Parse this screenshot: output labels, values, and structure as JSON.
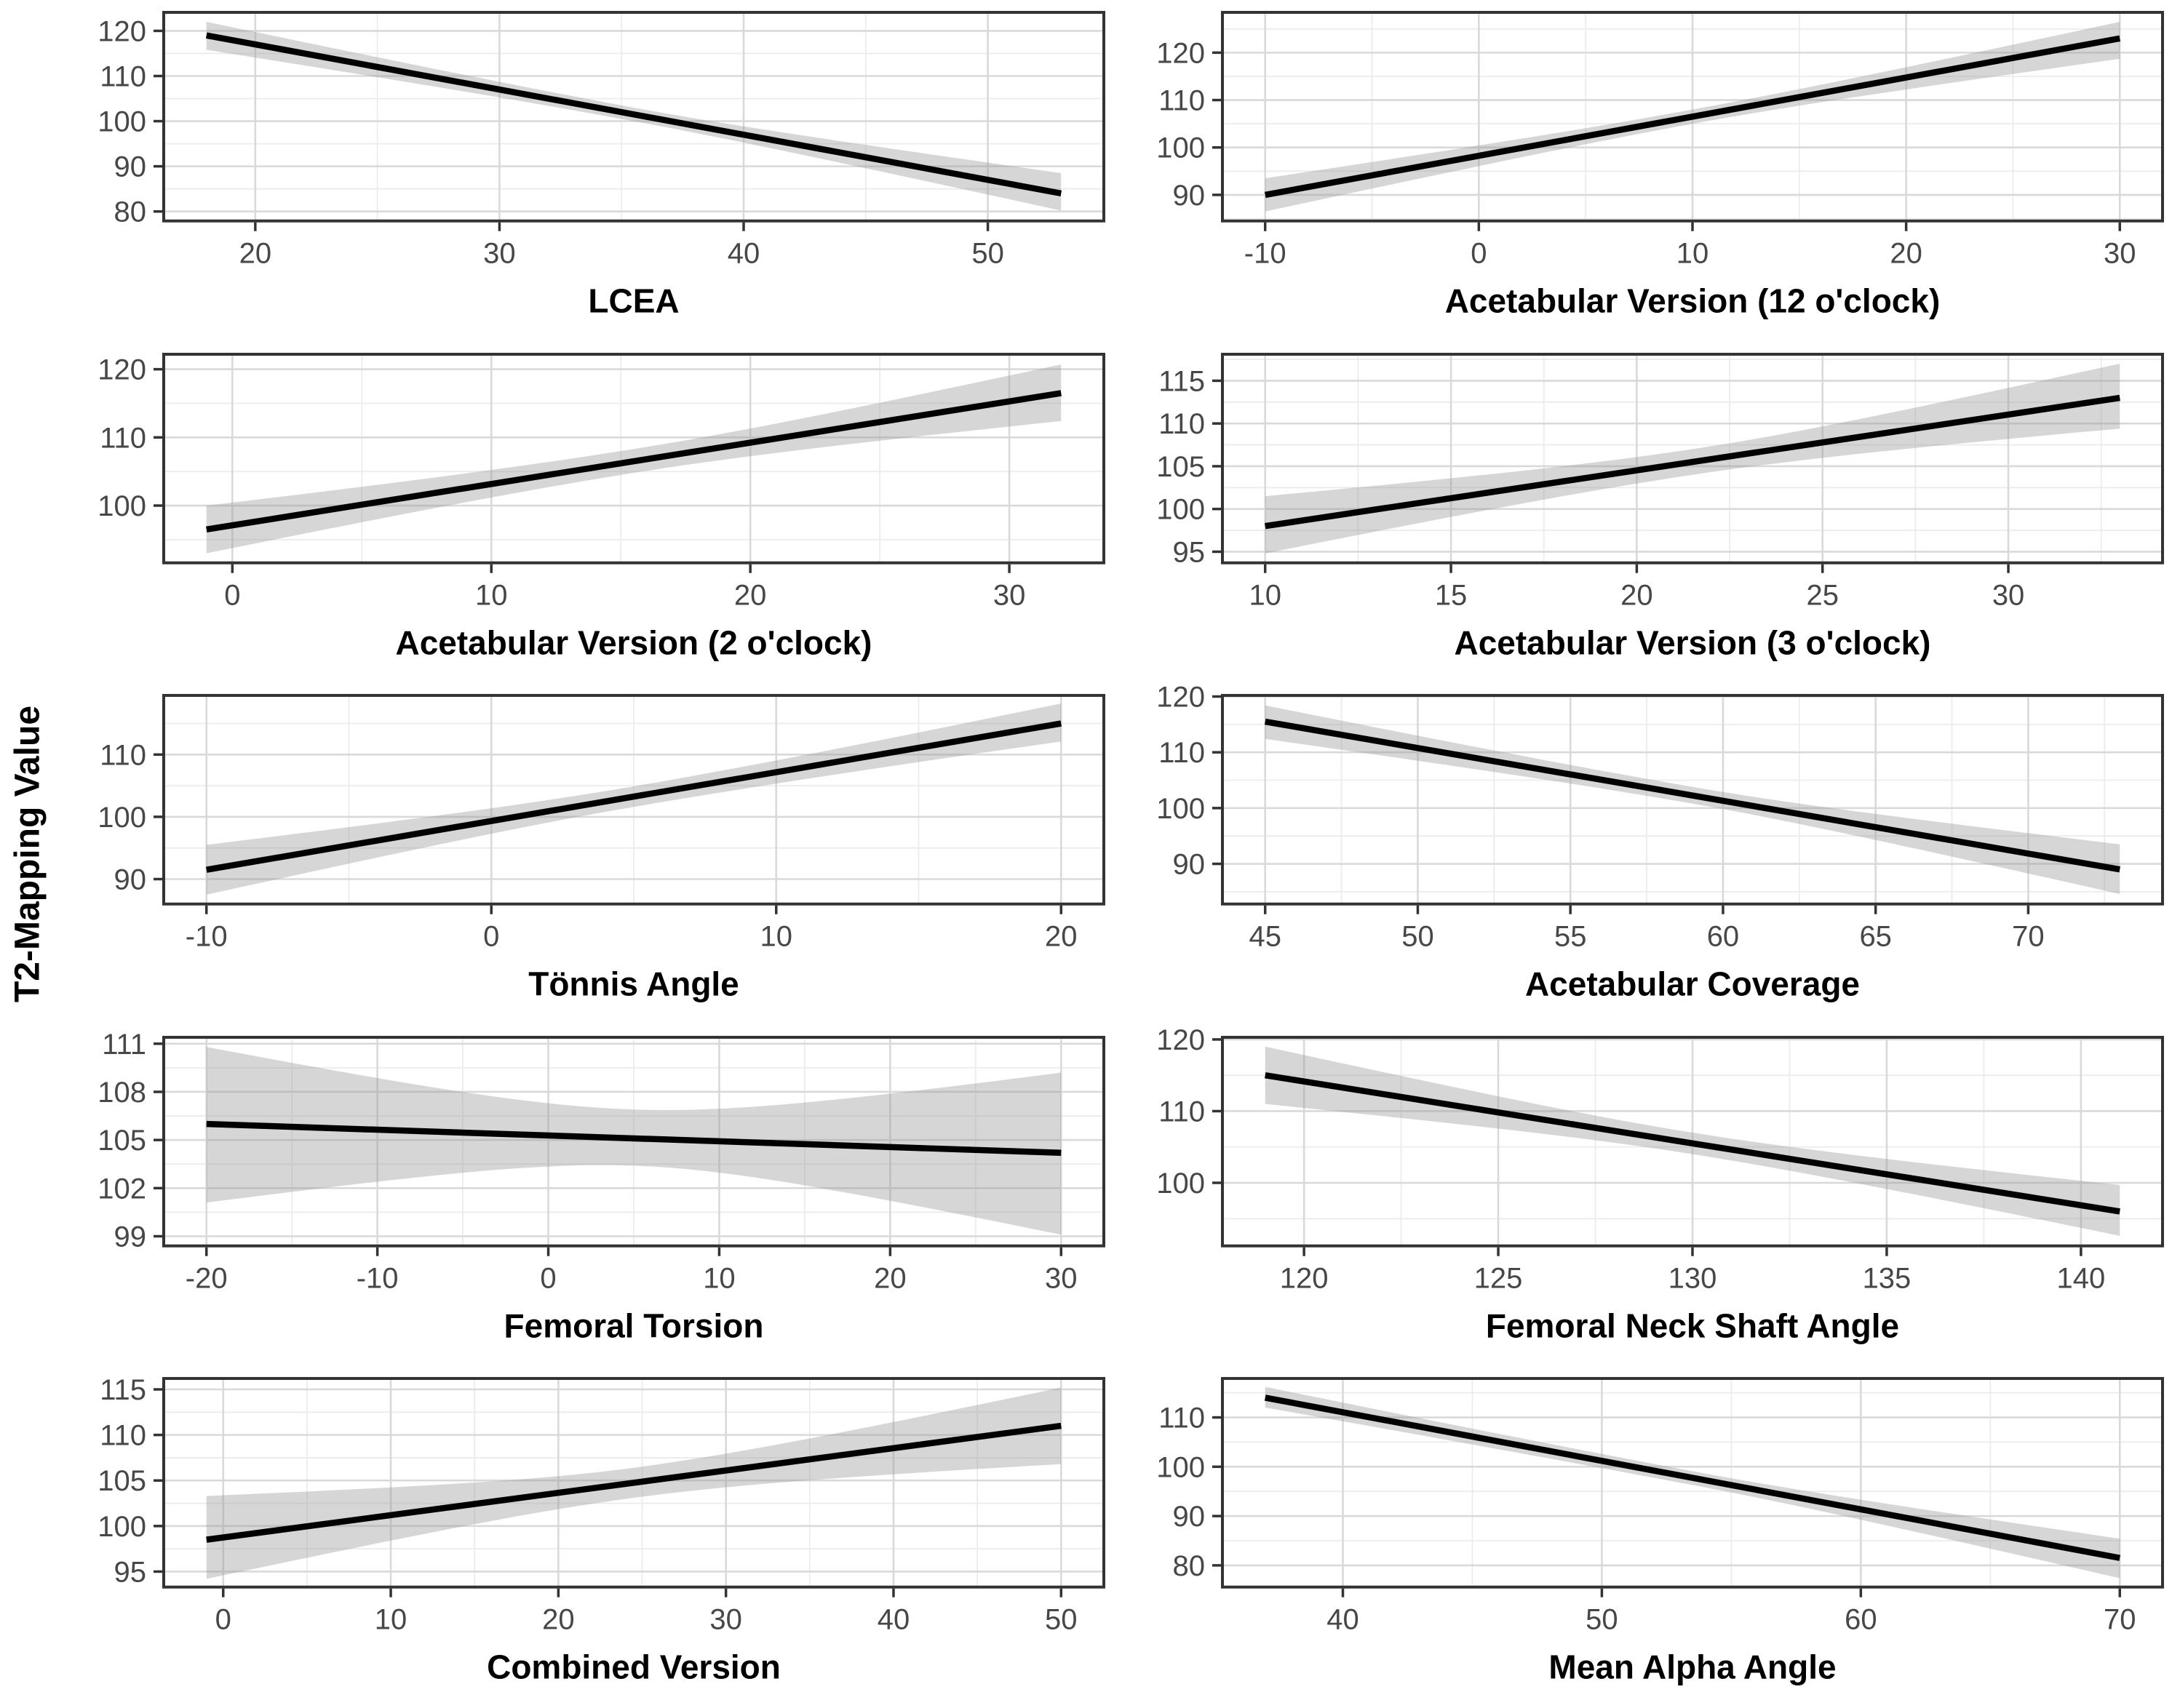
{
  "ylabel": "T2-Mapping Value",
  "colors": {
    "background": "#ffffff",
    "band": "rgba(153,153,153,0.40)",
    "line": "#000000",
    "grid_major": "#d9d9d9",
    "grid_minor": "#ececec",
    "panel_border": "#333333",
    "tick_mark": "#333333",
    "tick_text": "#474747",
    "axis_title": "#000000"
  },
  "chart_data": {
    "type": "line",
    "ylabel": "T2-Mapping Value",
    "legend": "none",
    "grid": "on",
    "panels": [
      {
        "id": "lcea",
        "title": "LCEA",
        "x_ticks": [
          20,
          30,
          40,
          50
        ],
        "y_ticks": [
          80,
          90,
          100,
          110,
          120
        ],
        "x_range": [
          16.25,
          54.75
        ],
        "y_range": [
          77.9,
          124.1
        ],
        "line": {
          "x": [
            18,
            53
          ],
          "y": [
            119,
            84
          ]
        },
        "ci_upper": [
          122.0,
          103.0,
          88.5
        ],
        "ci_lower": [
          115.8,
          100.0,
          80.2
        ]
      },
      {
        "id": "acetabular-version-12",
        "title": "Acetabular Version (12 o'clock)",
        "x_ticks": [
          -10,
          0,
          10,
          20,
          30
        ],
        "y_ticks": [
          90,
          100,
          110,
          120
        ],
        "x_range": [
          -12,
          32
        ],
        "y_range": [
          84.5,
          128.5
        ],
        "line": {
          "x": [
            -10,
            30
          ],
          "y": [
            90,
            123
          ]
        },
        "ci_upper": [
          93.5,
          108.0,
          126.5
        ],
        "ci_lower": [
          86.5,
          105.0,
          118.7
        ]
      },
      {
        "id": "acetabular-version-2",
        "title": "Acetabular Version (2 o'clock)",
        "x_ticks": [
          0,
          10,
          20,
          30
        ],
        "y_ticks": [
          100,
          110,
          120
        ],
        "x_range": [
          -2.65,
          33.65
        ],
        "y_range": [
          91.6,
          122.2
        ],
        "line": {
          "x": [
            -1,
            32
          ],
          "y": [
            96.5,
            116.5
          ]
        },
        "ci_upper": [
          100.0,
          108.3,
          120.7
        ],
        "ci_lower": [
          93.0,
          104.8,
          112.4
        ]
      },
      {
        "id": "acetabular-version-3",
        "title": "Acetabular Version (3 o'clock)",
        "x_ticks": [
          10,
          15,
          20,
          25,
          30
        ],
        "y_ticks": [
          95,
          100,
          105,
          110,
          115
        ],
        "x_range": [
          8.85,
          34.15
        ],
        "y_range": [
          93.7,
          118.1
        ],
        "line": {
          "x": [
            10,
            33
          ],
          "y": [
            98,
            113
          ]
        },
        "ci_upper": [
          101.5,
          107.0,
          117.0
        ],
        "ci_lower": [
          94.8,
          104.0,
          109.4
        ]
      },
      {
        "id": "tonnis-angle",
        "title": "Tönnis Angle",
        "x_ticks": [
          -10,
          0,
          10,
          20
        ],
        "y_ticks": [
          90,
          100,
          110
        ],
        "x_range": [
          -11.5,
          21.5
        ],
        "y_range": [
          86.0,
          119.5
        ],
        "line": {
          "x": [
            -10,
            20
          ],
          "y": [
            91.5,
            115
          ]
        },
        "ci_upper": [
          95.5,
          104.9,
          118.2
        ],
        "ci_lower": [
          87.5,
          101.6,
          112.1
        ]
      },
      {
        "id": "acetabular-coverage",
        "title": "Acetabular Coverage",
        "x_ticks": [
          45,
          50,
          55,
          60,
          65,
          70
        ],
        "y_ticks": [
          90,
          100,
          110,
          120
        ],
        "x_range": [
          43.6,
          74.4
        ],
        "y_range": [
          82.8,
          120.2
        ],
        "line": {
          "x": [
            45,
            73
          ],
          "y": [
            115.5,
            89
          ]
        },
        "ci_upper": [
          118.4,
          103.8,
          93.5
        ],
        "ci_lower": [
          112.4,
          100.8,
          84.6
        ]
      },
      {
        "id": "femoral-torsion",
        "title": "Femoral Torsion",
        "x_ticks": [
          -20,
          -10,
          0,
          10,
          20,
          30
        ],
        "y_ticks": [
          99,
          102,
          105,
          108,
          111
        ],
        "x_range": [
          -22.5,
          32.5
        ],
        "y_range": [
          98.4,
          111.4
        ],
        "line": {
          "x": [
            -20,
            30
          ],
          "y": [
            106,
            104.2
          ]
        },
        "ci_upper": [
          110.8,
          106.9,
          109.2
        ],
        "ci_lower": [
          101.1,
          103.4,
          99.1
        ]
      },
      {
        "id": "femoral-neck-shaft-angle",
        "title": "Femoral Neck Shaft Angle",
        "x_ticks": [
          120,
          125,
          130,
          135,
          140
        ],
        "y_ticks": [
          100,
          110,
          120
        ],
        "x_range": [
          117.9,
          142.1
        ],
        "y_range": [
          91.2,
          120.3
        ],
        "line": {
          "x": [
            119,
            141
          ],
          "y": [
            115,
            96
          ]
        },
        "ci_upper": [
          119.0,
          107.0,
          99.7
        ],
        "ci_lower": [
          111.0,
          104.0,
          92.6
        ]
      },
      {
        "id": "combined-version",
        "title": "Combined Version",
        "x_ticks": [
          0,
          10,
          20,
          30,
          40,
          50
        ],
        "y_ticks": [
          95,
          100,
          105,
          110,
          115
        ],
        "x_range": [
          -3.55,
          52.55
        ],
        "y_range": [
          93.3,
          116.2
        ],
        "line": {
          "x": [
            -1,
            50
          ],
          "y": [
            98.5,
            111
          ]
        },
        "ci_upper": [
          103.3,
          106.4,
          115.2
        ],
        "ci_lower": [
          94.2,
          103.1,
          106.8
        ]
      },
      {
        "id": "mean-alpha-angle",
        "title": "Mean Alpha Angle",
        "x_ticks": [
          40,
          50,
          60,
          70
        ],
        "y_ticks": [
          80,
          90,
          100,
          110
        ],
        "x_range": [
          35.35,
          71.65
        ],
        "y_range": [
          75.6,
          117.9
        ],
        "line": {
          "x": [
            37,
            70
          ],
          "y": [
            114,
            81.5
          ]
        },
        "ci_upper": [
          116.2,
          99.1,
          85.4
        ],
        "ci_lower": [
          112.0,
          96.3,
          77.4
        ]
      }
    ]
  }
}
